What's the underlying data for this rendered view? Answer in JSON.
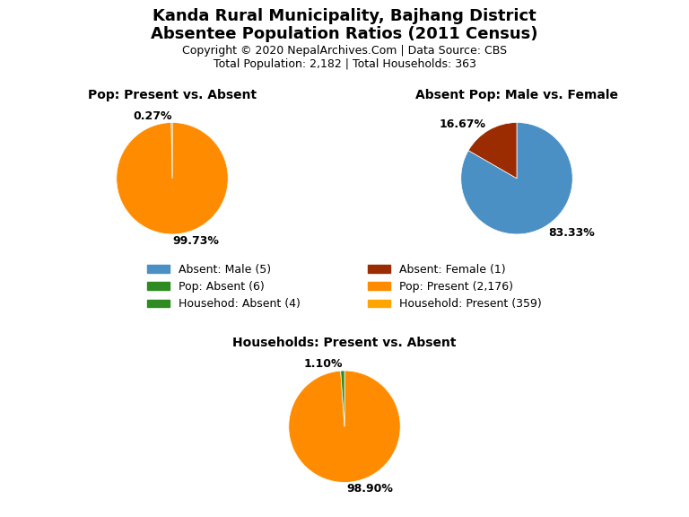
{
  "title": "Kanda Rural Municipality, Bajhang District",
  "subtitle": "Absentee Population Ratios (2011 Census)",
  "annotations": [
    "Copyright © 2020 NepalArchives.Com | Data Source: CBS",
    "Total Population: 2,182 | Total Households: 363"
  ],
  "legend": "center",
  "legend_entries": [
    {
      "name": "Absent: Male (5)",
      "color": "#4A90C4"
    },
    {
      "name": "Pop: Absent (6)",
      "color": "#2E8B22"
    },
    {
      "name": "Househod: Absent (4)",
      "color": "#2E8B22"
    },
    {
      "name": "Absent: Female (1)",
      "color": "#9B2B00"
    },
    {
      "name": "Pop: Present (2,176)",
      "color": "#FF8C00"
    },
    {
      "name": "Household: Present (359)",
      "color": "#FFA500"
    }
  ],
  "chart_data": [
    {
      "type": "pie",
      "title": "Pop: Present vs. Absent",
      "values": [
        99.73,
        0.27
      ],
      "value_labels": [
        "99.73%",
        "0.27%"
      ],
      "colors": [
        "#FF8C00",
        "#2E8B22"
      ],
      "data_labels": true
    },
    {
      "type": "pie",
      "title": "Absent Pop: Male vs. Female",
      "values": [
        83.33,
        16.67
      ],
      "value_labels": [
        "83.33%",
        "16.67%"
      ],
      "colors": [
        "#4A90C4",
        "#9B2B00"
      ],
      "data_labels": true
    },
    {
      "type": "pie",
      "title": "Households: Present vs. Absent",
      "values": [
        98.9,
        1.1
      ],
      "value_labels": [
        "98.90%",
        "1.10%"
      ],
      "colors": [
        "#FF8C00",
        "#2E8B22"
      ],
      "data_labels": true
    }
  ]
}
